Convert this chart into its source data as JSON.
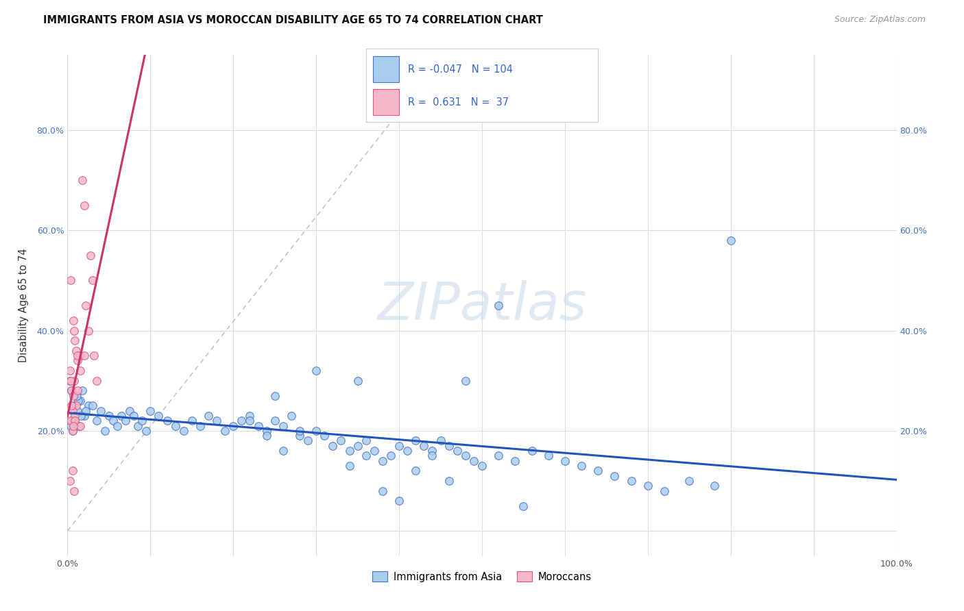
{
  "title": "IMMIGRANTS FROM ASIA VS MOROCCAN DISABILITY AGE 65 TO 74 CORRELATION CHART",
  "source": "Source: ZipAtlas.com",
  "ylabel": "Disability Age 65 to 74",
  "xlim": [
    0.0,
    1.0
  ],
  "ylim": [
    -0.05,
    0.95
  ],
  "xticks": [
    0.0,
    0.1,
    0.2,
    0.3,
    0.4,
    0.5,
    0.6,
    0.7,
    0.8,
    0.9,
    1.0
  ],
  "xticklabels": [
    "0.0%",
    "",
    "",
    "",
    "",
    "",
    "",
    "",
    "",
    "",
    "100.0%"
  ],
  "yticks": [
    0.0,
    0.2,
    0.4,
    0.6,
    0.8
  ],
  "yticklabels": [
    "",
    "20.0%",
    "40.0%",
    "60.0%",
    "80.0%"
  ],
  "watermark": "ZIPatlas",
  "legend_asia_label": "Immigrants from Asia",
  "legend_moroccan_label": "Moroccans",
  "R_asia": -0.047,
  "N_asia": 104,
  "R_moroccan": 0.631,
  "N_moroccan": 37,
  "asia_facecolor": "#aaccee",
  "asia_edgecolor": "#4472c4",
  "moroccan_facecolor": "#f4b8c8",
  "moroccan_edgecolor": "#e05080",
  "asia_trend_color": "#2255bb",
  "moroccan_trend_color": "#cc3366",
  "grid_color": "#d8dce8",
  "background_color": "#ffffff",
  "asia_scatter_x": [
    0.005,
    0.008,
    0.003,
    0.01,
    0.012,
    0.015,
    0.007,
    0.02,
    0.025,
    0.006,
    0.004,
    0.018,
    0.022,
    0.009,
    0.013,
    0.016,
    0.011,
    0.014,
    0.03,
    0.035,
    0.04,
    0.045,
    0.05,
    0.055,
    0.06,
    0.065,
    0.07,
    0.075,
    0.08,
    0.085,
    0.09,
    0.095,
    0.1,
    0.11,
    0.12,
    0.13,
    0.14,
    0.15,
    0.16,
    0.17,
    0.18,
    0.19,
    0.2,
    0.21,
    0.22,
    0.23,
    0.24,
    0.25,
    0.26,
    0.27,
    0.28,
    0.29,
    0.3,
    0.31,
    0.32,
    0.33,
    0.34,
    0.35,
    0.36,
    0.37,
    0.38,
    0.39,
    0.4,
    0.41,
    0.42,
    0.43,
    0.44,
    0.45,
    0.46,
    0.47,
    0.48,
    0.49,
    0.5,
    0.52,
    0.54,
    0.56,
    0.58,
    0.6,
    0.62,
    0.64,
    0.66,
    0.68,
    0.7,
    0.72,
    0.75,
    0.78,
    0.8,
    0.52,
    0.48,
    0.3,
    0.25,
    0.35,
    0.4,
    0.55,
    0.38,
    0.42,
    0.44,
    0.46,
    0.34,
    0.36,
    0.28,
    0.26,
    0.24,
    0.22
  ],
  "asia_scatter_y": [
    0.28,
    0.25,
    0.3,
    0.27,
    0.24,
    0.26,
    0.22,
    0.23,
    0.25,
    0.2,
    0.21,
    0.28,
    0.24,
    0.22,
    0.26,
    0.23,
    0.27,
    0.21,
    0.25,
    0.22,
    0.24,
    0.2,
    0.23,
    0.22,
    0.21,
    0.23,
    0.22,
    0.24,
    0.23,
    0.21,
    0.22,
    0.2,
    0.24,
    0.23,
    0.22,
    0.21,
    0.2,
    0.22,
    0.21,
    0.23,
    0.22,
    0.2,
    0.21,
    0.22,
    0.23,
    0.21,
    0.2,
    0.22,
    0.21,
    0.23,
    0.19,
    0.18,
    0.2,
    0.19,
    0.17,
    0.18,
    0.16,
    0.17,
    0.15,
    0.16,
    0.14,
    0.15,
    0.17,
    0.16,
    0.18,
    0.17,
    0.16,
    0.18,
    0.17,
    0.16,
    0.15,
    0.14,
    0.13,
    0.15,
    0.14,
    0.16,
    0.15,
    0.14,
    0.13,
    0.12,
    0.11,
    0.1,
    0.09,
    0.08,
    0.1,
    0.09,
    0.58,
    0.45,
    0.3,
    0.32,
    0.27,
    0.3,
    0.06,
    0.05,
    0.08,
    0.12,
    0.15,
    0.1,
    0.13,
    0.18,
    0.2,
    0.16,
    0.19,
    0.22
  ],
  "moroccan_scatter_x": [
    0.005,
    0.006,
    0.004,
    0.007,
    0.008,
    0.009,
    0.01,
    0.012,
    0.015,
    0.003,
    0.008,
    0.005,
    0.007,
    0.01,
    0.006,
    0.009,
    0.012,
    0.004,
    0.015,
    0.018,
    0.02,
    0.022,
    0.025,
    0.028,
    0.03,
    0.032,
    0.035,
    0.008,
    0.006,
    0.005,
    0.009,
    0.007,
    0.012,
    0.004,
    0.003,
    0.015,
    0.02
  ],
  "moroccan_scatter_y": [
    0.22,
    0.2,
    0.5,
    0.42,
    0.4,
    0.38,
    0.36,
    0.34,
    0.35,
    0.32,
    0.3,
    0.28,
    0.27,
    0.25,
    0.24,
    0.23,
    0.35,
    0.22,
    0.21,
    0.7,
    0.65,
    0.45,
    0.4,
    0.55,
    0.5,
    0.35,
    0.3,
    0.08,
    0.12,
    0.25,
    0.22,
    0.21,
    0.28,
    0.3,
    0.1,
    0.32,
    0.35
  ]
}
